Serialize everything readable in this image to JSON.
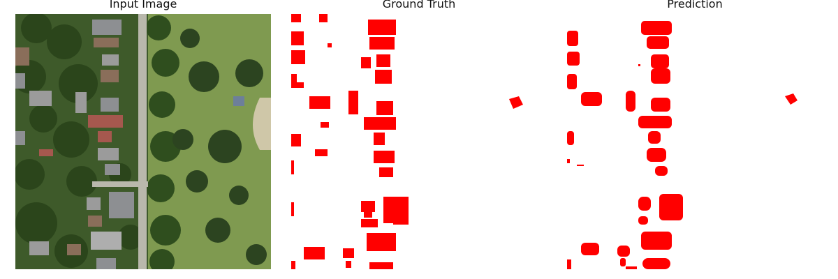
{
  "titles": {
    "input": "Input Image",
    "ground_truth": "Ground Truth",
    "prediction": "Prediction"
  },
  "colors": {
    "background": "#ffffff",
    "mask": "#ff0000",
    "vegetation_dark": "#2f4a1e",
    "vegetation_mid": "#5a7a3a",
    "lawn": "#86a25a",
    "road": "#b9b8ac",
    "roof_gray": "#8d8f92",
    "roof_red": "#a5584e",
    "roof_brown": "#8a6e5a"
  }
}
